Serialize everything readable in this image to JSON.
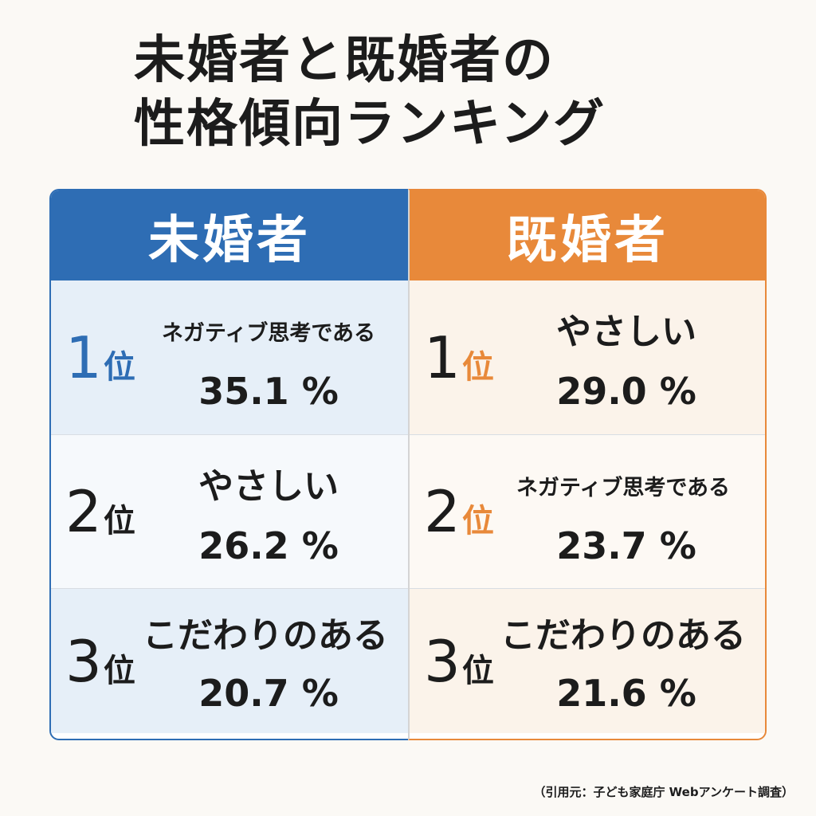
{
  "title": {
    "line1": "未婚者と既婚者の",
    "line2": "性格傾向ランキング"
  },
  "colors": {
    "unmarried": "#2e6db4",
    "married": "#e8893a",
    "text": "#1c1c1c"
  },
  "columns": [
    {
      "header": "未婚者",
      "rows": [
        {
          "rank": "1",
          "unit": "位",
          "label": "ネガティブ思考である",
          "value": "35.1 %"
        },
        {
          "rank": "2",
          "unit": "位",
          "label": "やさしい",
          "value": "26.2 %"
        },
        {
          "rank": "3",
          "unit": "位",
          "label": "こだわりのある",
          "value": "20.7 %"
        }
      ]
    },
    {
      "header": "既婚者",
      "rows": [
        {
          "rank": "1",
          "unit": "位",
          "label": "やさしい",
          "value": "29.0 %"
        },
        {
          "rank": "2",
          "unit": "位",
          "label": "ネガティブ思考である",
          "value": "23.7 %"
        },
        {
          "rank": "3",
          "unit": "位",
          "label": "こだわりのある",
          "value": "21.6 %"
        }
      ]
    }
  ],
  "source": "（引用元：子ども家庭庁 Webアンケート調査）"
}
